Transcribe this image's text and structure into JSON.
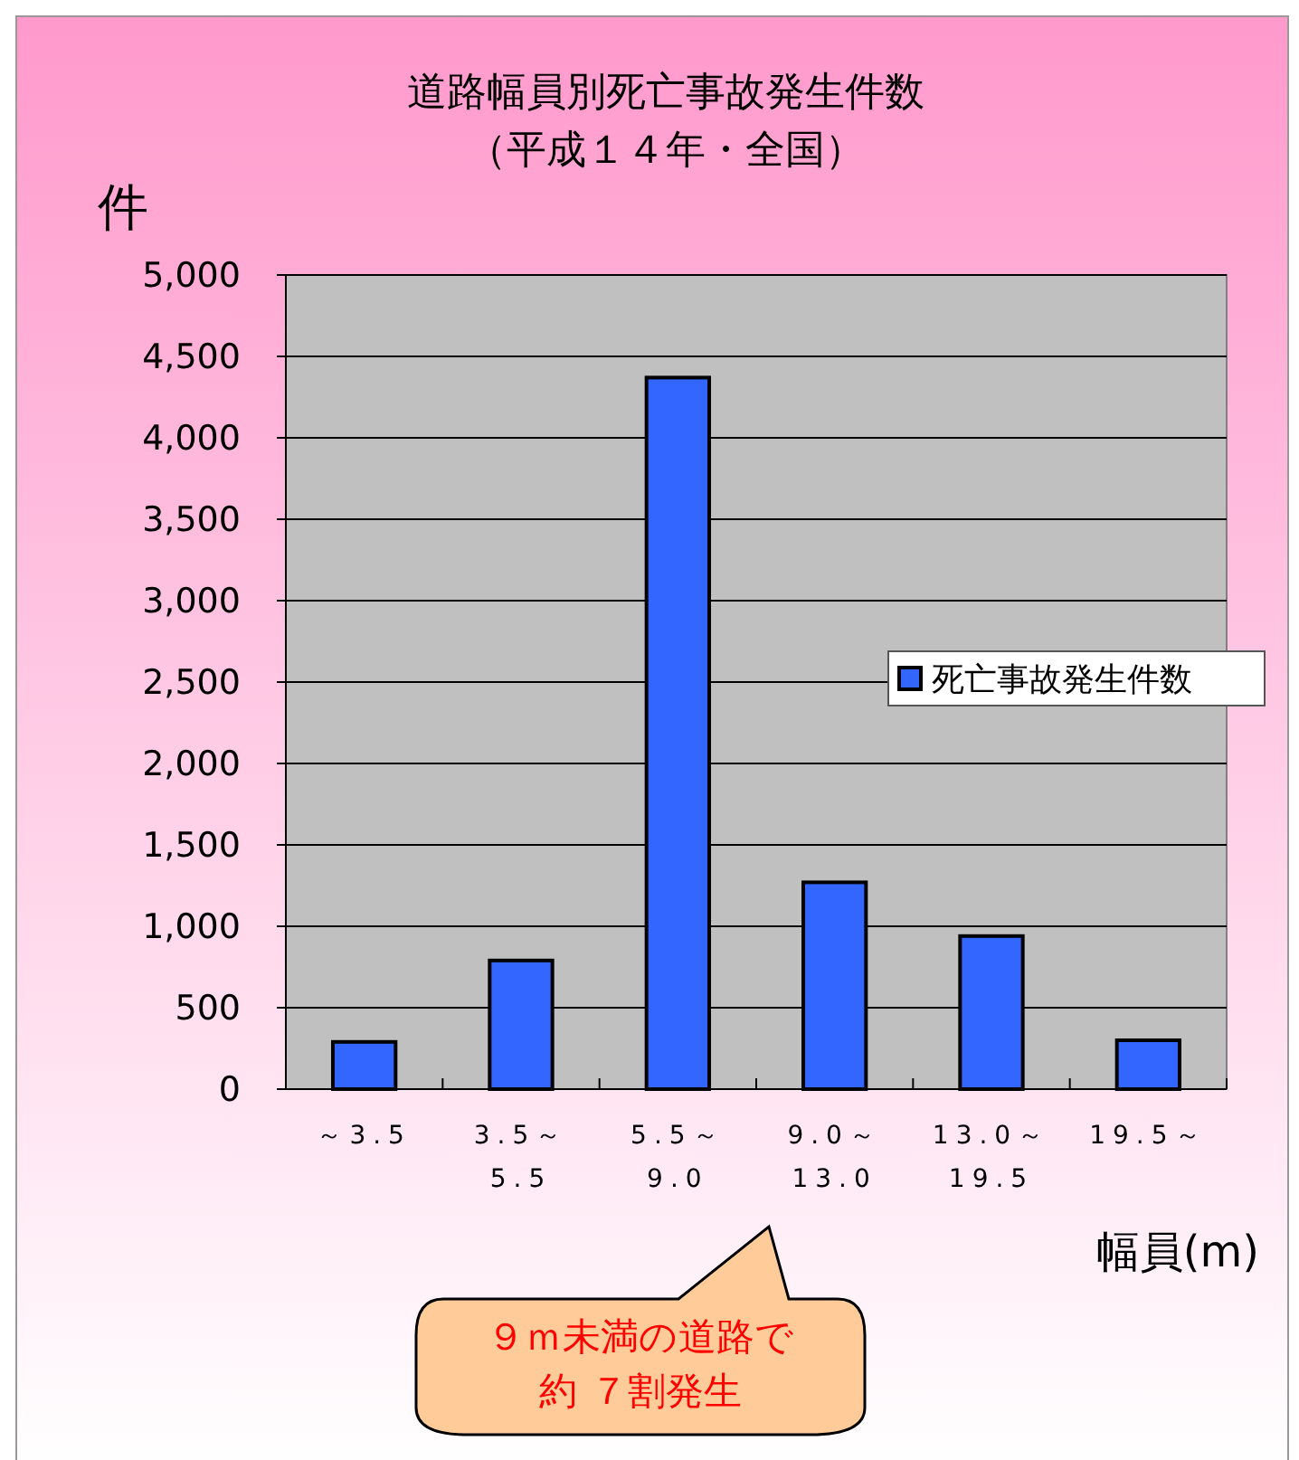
{
  "chart_data": {
    "type": "bar",
    "title": "道路幅員別死亡事故発生件数",
    "subtitle": "（平成１４年・全国）",
    "ylabel": "件",
    "xlabel": "幅員(m)",
    "categories": [
      "～3.5",
      "3.5～\n5.5",
      "5.5～\n9.0",
      "9.0～\n13.0",
      "13.0～\n19.5",
      "19.5～"
    ],
    "series": [
      {
        "name": "死亡事故発生件数",
        "color": "#3366ff",
        "values": [
          290,
          790,
          4370,
          1270,
          940,
          300
        ]
      }
    ],
    "ylim": [
      0,
      5000
    ],
    "yticks": [
      {
        "value": 0,
        "label": "0"
      },
      {
        "value": 500,
        "label": "500"
      },
      {
        "value": 1000,
        "label": "1,000"
      },
      {
        "value": 1500,
        "label": "1,500"
      },
      {
        "value": 2000,
        "label": "2,000"
      },
      {
        "value": 2500,
        "label": "2,500"
      },
      {
        "value": 3000,
        "label": "3,000"
      },
      {
        "value": 3500,
        "label": "3,500"
      },
      {
        "value": 4000,
        "label": "4,000"
      },
      {
        "value": 4500,
        "label": "4,500"
      },
      {
        "value": 5000,
        "label": "5,000"
      }
    ],
    "grid": "y",
    "legend": "right",
    "annotations": [
      "９ｍ未満の道路で",
      "約 ７割発生"
    ]
  }
}
